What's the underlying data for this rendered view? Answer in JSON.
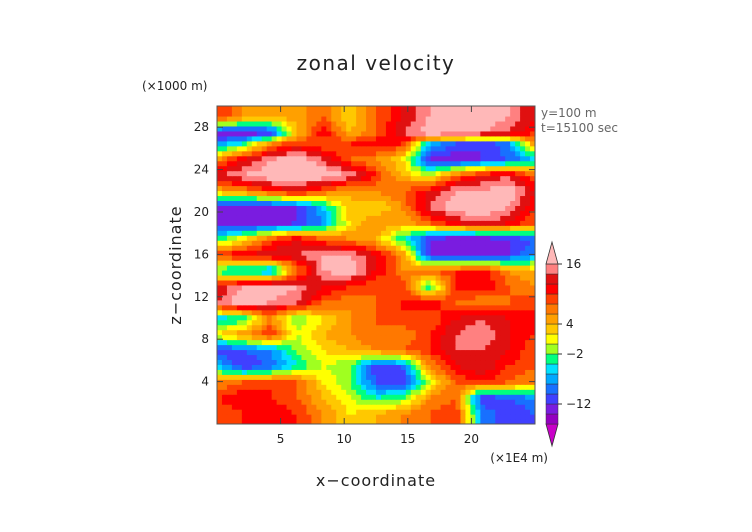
{
  "chart_data": {
    "type": "heatmap",
    "title": "zonal velocity",
    "xlabel": "x−coordinate",
    "ylabel": "z−coordinate",
    "x_unit": "(×1E4 m)",
    "y_unit": "(×1000 m)",
    "annotations": [
      "y=100 m",
      "t=15100 sec"
    ],
    "xlim": [
      0,
      25
    ],
    "ylim": [
      0,
      30
    ],
    "xticks": [
      5,
      10,
      15,
      20
    ],
    "yticks": [
      4,
      8,
      12,
      16,
      20,
      24,
      28
    ],
    "colorbar": {
      "labels": [
        16,
        4,
        -2,
        -12
      ],
      "levels": [
        -16,
        -14,
        -12,
        -10,
        -8,
        -6,
        -4,
        -2,
        0,
        2,
        4,
        6,
        8,
        10,
        12,
        14,
        16,
        18
      ],
      "colors": [
        "#c800c8",
        "#9400c0",
        "#7a1ce0",
        "#4040ff",
        "#1870ff",
        "#00a8ff",
        "#00e0ff",
        "#00ff80",
        "#a0ff20",
        "#ffff00",
        "#ffc800",
        "#ffa000",
        "#ff7800",
        "#ff4000",
        "#ff0000",
        "#e01010",
        "#ff8080",
        "#ffb8b8"
      ]
    },
    "bands": [
      {
        "z": 29.0,
        "v": [
          10,
          6,
          4,
          5,
          8,
          2,
          8,
          12,
          16,
          18,
          18,
          16,
          12
        ]
      },
      {
        "z": 27.5,
        "v": [
          -14,
          -14,
          -12,
          3,
          12,
          4,
          8,
          14,
          18,
          18,
          16,
          14,
          10
        ]
      },
      {
        "z": 26.5,
        "v": [
          -8,
          -4,
          6,
          10,
          8,
          10,
          12,
          10,
          -6,
          -10,
          -12,
          -8,
          6
        ]
      },
      {
        "z": 25.0,
        "v": [
          6,
          12,
          16,
          18,
          14,
          8,
          6,
          2,
          -12,
          -14,
          -12,
          -10,
          -6
        ]
      },
      {
        "z": 23.5,
        "v": [
          14,
          16,
          18,
          18,
          18,
          16,
          10,
          4,
          0,
          8,
          12,
          14,
          8
        ]
      },
      {
        "z": 22.0,
        "v": [
          4,
          6,
          10,
          12,
          8,
          4,
          6,
          8,
          12,
          16,
          16,
          18,
          12
        ]
      },
      {
        "z": 20.5,
        "v": [
          -14,
          -14,
          -14,
          -12,
          -6,
          4,
          2,
          6,
          14,
          18,
          18,
          16,
          10
        ]
      },
      {
        "z": 19.0,
        "v": [
          -12,
          -14,
          -14,
          -12,
          -8,
          2,
          6,
          4,
          8,
          12,
          14,
          12,
          8
        ]
      },
      {
        "z": 17.5,
        "v": [
          -4,
          2,
          8,
          12,
          8,
          6,
          4,
          -4,
          -12,
          -14,
          -14,
          -12,
          -10
        ]
      },
      {
        "z": 16.0,
        "v": [
          10,
          12,
          14,
          14,
          16,
          16,
          12,
          6,
          -12,
          -14,
          -14,
          -12,
          -8
        ]
      },
      {
        "z": 14.5,
        "v": [
          -4,
          -6,
          -8,
          6,
          16,
          18,
          12,
          6,
          8,
          10,
          12,
          6,
          4
        ]
      },
      {
        "z": 13.0,
        "v": [
          12,
          16,
          18,
          16,
          12,
          10,
          8,
          10,
          -4,
          10,
          12,
          8,
          6
        ]
      },
      {
        "z": 11.5,
        "v": [
          14,
          18,
          16,
          14,
          8,
          6,
          8,
          10,
          12,
          8,
          6,
          8,
          10
        ]
      },
      {
        "z": 10.0,
        "v": [
          -6,
          -4,
          6,
          -2,
          2,
          6,
          8,
          10,
          8,
          12,
          14,
          12,
          10
        ]
      },
      {
        "z": 8.5,
        "v": [
          2,
          6,
          10,
          0,
          4,
          6,
          8,
          6,
          10,
          14,
          16,
          12,
          10
        ]
      },
      {
        "z": 7.0,
        "v": [
          -12,
          -10,
          -8,
          -2,
          2,
          4,
          6,
          8,
          10,
          14,
          14,
          12,
          8
        ]
      },
      {
        "z": 5.5,
        "v": [
          -6,
          -12,
          -10,
          -4,
          0,
          -2,
          -12,
          -10,
          6,
          12,
          14,
          10,
          8
        ]
      },
      {
        "z": 4.0,
        "v": [
          6,
          8,
          10,
          8,
          2,
          -2,
          -10,
          -12,
          0,
          8,
          10,
          8,
          6
        ]
      },
      {
        "z": 2.5,
        "v": [
          10,
          12,
          10,
          8,
          4,
          0,
          -4,
          -2,
          6,
          8,
          -12,
          -10,
          -8
        ]
      },
      {
        "z": 1.0,
        "v": [
          8,
          10,
          12,
          10,
          6,
          2,
          4,
          6,
          8,
          10,
          -8,
          -12,
          -10
        ]
      }
    ]
  }
}
